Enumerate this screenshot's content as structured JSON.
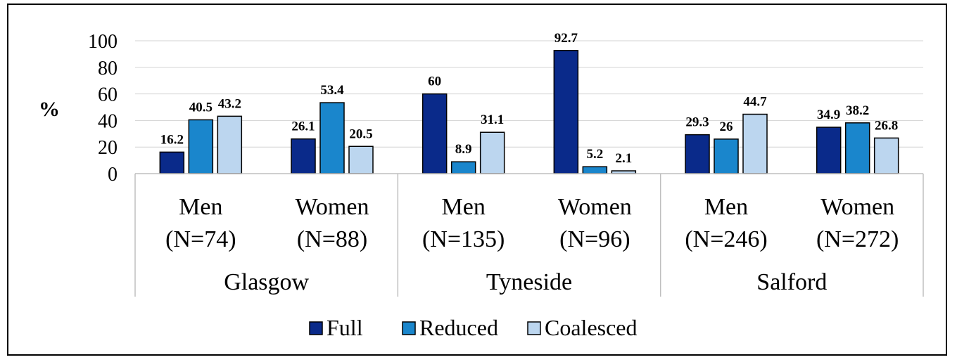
{
  "chart_data": {
    "type": "bar",
    "title": "",
    "ylabel": "%",
    "xlabel": "",
    "ylim": [
      0,
      100
    ],
    "yticks": [
      0,
      20,
      40,
      60,
      80,
      100
    ],
    "grid": true,
    "legend_position": "bottom",
    "groups": [
      {
        "label": "Glasgow",
        "categories": [
          "Men\n(N=74)",
          "Women\n(N=88)"
        ]
      },
      {
        "label": "Tyneside",
        "categories": [
          "Men\n(N=135)",
          "Women\n(N=96)"
        ]
      },
      {
        "label": "Salford",
        "categories": [
          "Men\n(N=246)",
          "Women\n(N=272)"
        ]
      }
    ],
    "categories": [
      "Men (N=74)",
      "Women (N=88)",
      "Men (N=135)",
      "Women (N=96)",
      "Men (N=246)",
      "Women (N=272)"
    ],
    "category_lines": [
      [
        "Men",
        "(N=74)"
      ],
      [
        "Women",
        "(N=88)"
      ],
      [
        "Men",
        "(N=135)"
      ],
      [
        "Women",
        "(N=96)"
      ],
      [
        "Men",
        "(N=246)"
      ],
      [
        "Women",
        "(N=272)"
      ]
    ],
    "series": [
      {
        "name": "Full",
        "color": "#0a2a8a",
        "values": [
          16.2,
          26.1,
          60,
          92.7,
          29.3,
          34.9
        ]
      },
      {
        "name": "Reduced",
        "color": "#1a86cc",
        "values": [
          40.5,
          53.4,
          8.9,
          5.2,
          26,
          38.2
        ]
      },
      {
        "name": "Coalesced",
        "color": "#bcd6ef",
        "values": [
          43.2,
          20.5,
          31.1,
          2.1,
          44.7,
          26.8
        ]
      }
    ],
    "data_labels": [
      [
        "16.2",
        "26.1",
        "60",
        "92.7",
        "29.3",
        "34.9"
      ],
      [
        "40.5",
        "53.4",
        "8.9",
        "5.2",
        "26",
        "38.2"
      ],
      [
        "43.2",
        "20.5",
        "31.1",
        "2.1",
        "44.7",
        "26.8"
      ]
    ]
  }
}
